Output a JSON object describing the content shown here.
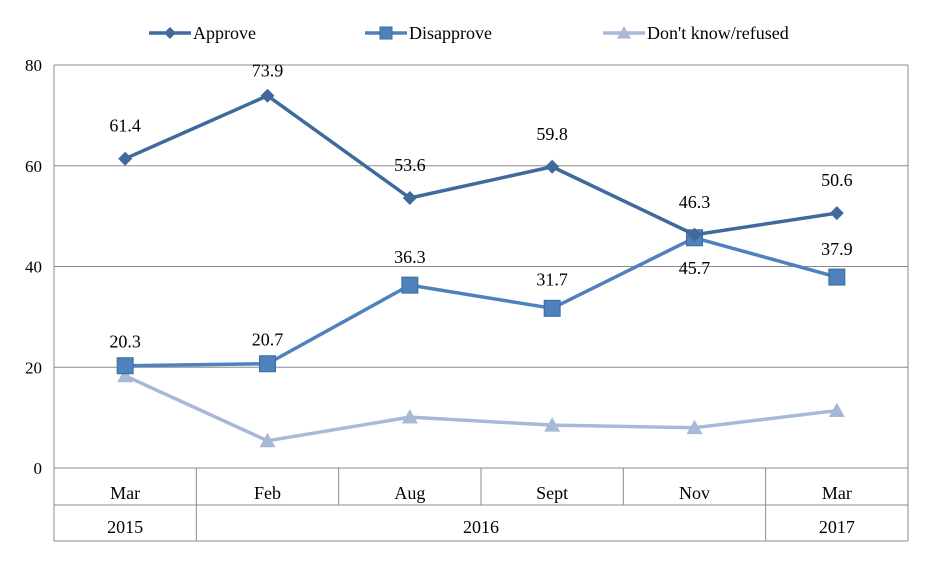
{
  "chart_data": {
    "type": "line",
    "title": "",
    "xlabel": "",
    "ylabel": "",
    "ylim": [
      0,
      80
    ],
    "yticks": [
      0,
      20,
      40,
      60,
      80
    ],
    "grid": "horizontal",
    "legend_position": "top",
    "categories": [
      "Mar",
      "Feb",
      "Aug",
      "Sept",
      "Nov",
      "Mar"
    ],
    "year_groups": [
      {
        "label": "2015",
        "span": 1
      },
      {
        "label": "2016",
        "span": 4
      },
      {
        "label": "2017",
        "span": 1
      }
    ],
    "series": [
      {
        "name": "Approve",
        "color": "#3f6a9c",
        "marker": "diamond",
        "values": [
          61.4,
          73.9,
          53.6,
          59.8,
          46.3,
          50.6
        ],
        "labels": [
          "61.4",
          "73.9",
          "53.6",
          "59.8",
          "46.3",
          "50.6"
        ]
      },
      {
        "name": "Disapprove",
        "color": "#4f81bd",
        "marker": "square",
        "values": [
          20.3,
          20.7,
          36.3,
          31.7,
          45.7,
          37.9
        ],
        "labels": [
          "20.3",
          "20.7",
          "36.3",
          "31.7",
          "45.7",
          "37.9"
        ]
      },
      {
        "name": "Don't know/refused",
        "color": "#a7b9d6",
        "marker": "triangle",
        "values": [
          18.3,
          5.4,
          10.1,
          8.5,
          8.0,
          11.4
        ],
        "labels": []
      }
    ]
  }
}
